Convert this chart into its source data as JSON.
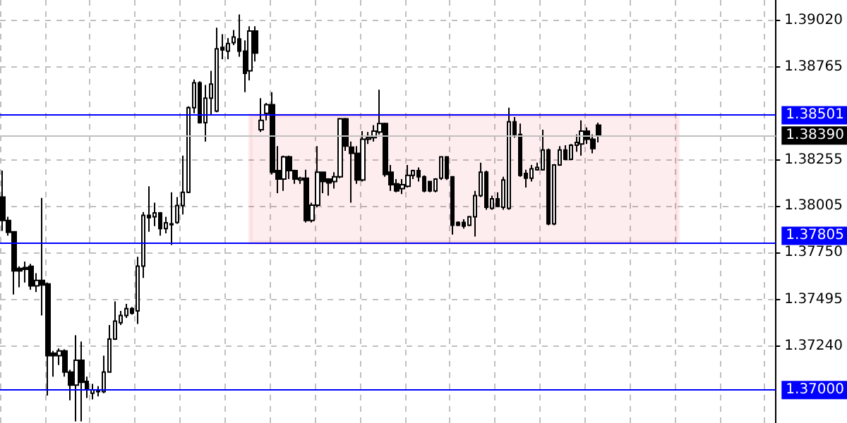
{
  "chart_data": {
    "type": "candlestick",
    "categories": [
      null,
      null,
      null,
      null,
      null,
      null,
      null,
      null,
      null,
      null,
      null,
      null,
      null,
      null,
      null,
      null,
      null,
      null,
      null,
      null,
      null,
      null,
      null,
      null,
      null,
      null,
      null,
      null,
      null,
      null,
      null,
      null,
      null,
      null,
      null,
      null,
      null,
      null,
      null,
      null,
      null,
      null,
      null,
      null,
      null,
      null,
      null,
      null,
      null,
      null,
      null,
      null,
      null,
      null,
      null,
      null,
      null,
      null,
      null,
      null,
      null,
      null,
      null,
      null,
      null,
      null,
      null,
      null,
      null,
      null,
      null,
      null,
      null,
      null,
      null,
      null,
      null,
      null,
      null,
      null,
      null,
      null,
      null,
      null,
      null,
      null,
      null,
      null,
      null,
      null,
      null,
      null,
      null,
      null,
      null,
      null,
      null,
      null,
      null,
      null,
      null,
      null,
      null,
      null,
      null,
      null,
      null,
      null,
      null,
      null,
      null,
      null,
      null,
      null,
      null,
      null,
      null,
      null,
      null,
      null,
      null,
      null,
      null,
      null,
      null,
      null,
      null,
      null,
      null,
      null,
      null,
      null,
      null,
      null,
      null,
      null,
      null,
      null
    ],
    "ohlc": [
      [
        1.38054,
        1.38198,
        1.37869,
        1.37926
      ],
      [
        1.37926,
        1.37946,
        1.37843,
        1.37861
      ],
      [
        1.37864,
        1.37866,
        1.37522,
        1.37651
      ],
      [
        1.37664,
        1.37676,
        1.37561,
        1.37651
      ],
      [
        1.37669,
        1.37702,
        1.37587,
        1.37659
      ],
      [
        1.37676,
        1.37689,
        1.37548,
        1.37569
      ],
      [
        1.37569,
        1.37638,
        1.37535,
        1.37599
      ],
      [
        1.37599,
        1.38049,
        1.37407,
        1.37574
      ],
      [
        1.37579,
        1.37587,
        1.3697,
        1.37188
      ],
      [
        1.37201,
        1.37214,
        1.37073,
        1.37188
      ],
      [
        1.37188,
        1.37227,
        1.37137,
        1.37214
      ],
      [
        1.37214,
        1.37222,
        1.37073,
        1.37098
      ],
      [
        1.37098,
        1.37111,
        1.36944,
        1.37027
      ],
      [
        1.37027,
        1.37299,
        1.36829,
        1.37163
      ],
      [
        1.37163,
        1.37265,
        1.36829,
        1.37042
      ],
      [
        1.37047,
        1.37073,
        1.36957,
        1.37009
      ],
      [
        1.36983,
        1.37034,
        1.36949,
        1.37001
      ],
      [
        1.37001,
        1.37021,
        1.36965,
        1.36991
      ],
      [
        1.36991,
        1.37188,
        1.36983,
        1.37098
      ],
      [
        1.37098,
        1.37355,
        1.37095,
        1.37278
      ],
      [
        1.37278,
        1.37484,
        1.37273,
        1.37376
      ],
      [
        1.37368,
        1.37432,
        1.37355,
        1.37407
      ],
      [
        1.37407,
        1.37471,
        1.37394,
        1.37445
      ],
      [
        1.37445,
        1.37453,
        1.37412,
        1.3742
      ],
      [
        1.37432,
        1.37728,
        1.37361,
        1.37677
      ],
      [
        1.37677,
        1.37972,
        1.37612,
        1.37954
      ],
      [
        1.37954,
        1.38113,
        1.37864,
        1.37941
      ],
      [
        1.37946,
        1.38023,
        1.37895,
        1.37967
      ],
      [
        1.37967,
        1.37972,
        1.37843,
        1.37882
      ],
      [
        1.37882,
        1.37946,
        1.37856,
        1.37913
      ],
      [
        1.37903,
        1.3808,
        1.37792,
        1.37908
      ],
      [
        1.37915,
        1.38054,
        1.37908,
        1.38008
      ],
      [
        1.38008,
        1.3828,
        1.37959,
        1.3808
      ],
      [
        1.3808,
        1.3855,
        1.38075,
        1.38542
      ],
      [
        1.38542,
        1.38696,
        1.38511,
        1.38678
      ],
      [
        1.38678,
        1.38686,
        1.38455,
        1.3846
      ],
      [
        1.3846,
        1.38666,
        1.38357,
        1.38594
      ],
      [
        1.38594,
        1.38743,
        1.38499,
        1.38671
      ],
      [
        1.38524,
        1.38979,
        1.38517,
        1.38863
      ],
      [
        1.38871,
        1.38943,
        1.38807,
        1.38858
      ],
      [
        1.38851,
        1.38922,
        1.38807,
        1.38892
      ],
      [
        1.38897,
        1.38966,
        1.38884,
        1.38928
      ],
      [
        1.38917,
        1.39051,
        1.3882,
        1.38851
      ],
      [
        1.38851,
        1.3891,
        1.38627,
        1.3873
      ],
      [
        1.38743,
        1.38987,
        1.38691,
        1.38961
      ],
      [
        1.38961,
        1.38987,
        1.38794,
        1.3884
      ],
      [
        1.38422,
        1.38594,
        1.38409,
        1.38473
      ],
      [
        1.38511,
        1.38568,
        1.38473,
        1.38558
      ],
      [
        1.38558,
        1.38627,
        1.38177,
        1.3819
      ],
      [
        1.38198,
        1.38332,
        1.38075,
        1.38152
      ],
      [
        1.38152,
        1.3828,
        1.38088,
        1.38273
      ],
      [
        1.38273,
        1.3828,
        1.38152,
        1.38198
      ],
      [
        1.38198,
        1.38203,
        1.38126,
        1.38152
      ],
      [
        1.38147,
        1.38165,
        1.38126,
        1.38157
      ],
      [
        1.38157,
        1.38203,
        1.37915,
        1.37926
      ],
      [
        1.37926,
        1.38023,
        1.37915,
        1.3801
      ],
      [
        1.3801,
        1.38332,
        1.37998,
        1.3819
      ],
      [
        1.3819,
        1.3819,
        1.38075,
        1.38139
      ],
      [
        1.38152,
        1.38157,
        1.38062,
        1.38131
      ],
      [
        1.38139,
        1.3819,
        1.381,
        1.38165
      ],
      [
        1.38165,
        1.38486,
        1.38157,
        1.38481
      ],
      [
        1.38481,
        1.38486,
        1.38306,
        1.38332
      ],
      [
        1.38326,
        1.38357,
        1.38023,
        1.38293
      ],
      [
        1.38293,
        1.38332,
        1.38126,
        1.38147
      ],
      [
        1.38147,
        1.38414,
        1.38139,
        1.3837
      ],
      [
        1.3837,
        1.38409,
        1.38344,
        1.38378
      ],
      [
        1.38378,
        1.38447,
        1.38357,
        1.38414
      ],
      [
        1.38409,
        1.3864,
        1.38396,
        1.38455
      ],
      [
        1.38455,
        1.3846,
        1.38165,
        1.38177
      ],
      [
        1.3819,
        1.38229,
        1.38088,
        1.38121
      ],
      [
        1.38126,
        1.38152,
        1.3808,
        1.38088
      ],
      [
        1.381,
        1.38152,
        1.3807,
        1.38121
      ],
      [
        1.38113,
        1.38229,
        1.38106,
        1.38172
      ],
      [
        1.38172,
        1.38203,
        1.38152,
        1.38198
      ],
      [
        1.38198,
        1.38216,
        1.38139,
        1.38165
      ],
      [
        1.38165,
        1.38172,
        1.3808,
        1.38088
      ],
      [
        1.38139,
        1.38139,
        1.3808,
        1.38088
      ],
      [
        1.38088,
        1.38157,
        1.3808,
        1.38152
      ],
      [
        1.38157,
        1.38275,
        1.38147,
        1.38273
      ],
      [
        1.38273,
        1.38275,
        1.38147,
        1.38157
      ],
      [
        1.38165,
        1.38165,
        1.37849,
        1.379
      ],
      [
        1.37915,
        1.37921,
        1.37895,
        1.379
      ],
      [
        1.37915,
        1.37933,
        1.37882,
        1.37895
      ],
      [
        1.379,
        1.37951,
        1.37895,
        1.37946
      ],
      [
        1.37946,
        1.38088,
        1.37838,
        1.38062
      ],
      [
        1.38062,
        1.38242,
        1.38054,
        1.3819
      ],
      [
        1.3819,
        1.38198,
        1.37985,
        1.37998
      ],
      [
        1.37992,
        1.38062,
        1.37985,
        1.38044
      ],
      [
        1.38044,
        1.3808,
        1.37998,
        1.38003
      ],
      [
        1.37998,
        1.38165,
        1.37985,
        1.38147
      ],
      [
        1.37992,
        1.38542,
        1.37985,
        1.38465
      ],
      [
        1.38465,
        1.38491,
        1.38378,
        1.38396
      ],
      [
        1.38396,
        1.38455,
        1.38165,
        1.38172
      ],
      [
        1.38183,
        1.38203,
        1.38106,
        1.38157
      ],
      [
        1.38157,
        1.38229,
        1.38139,
        1.38208
      ],
      [
        1.38203,
        1.38242,
        1.38198,
        1.38216
      ],
      [
        1.38203,
        1.38422,
        1.38198,
        1.38311
      ],
      [
        1.38311,
        1.38319,
        1.379,
        1.37908
      ],
      [
        1.37908,
        1.38234,
        1.379,
        1.38229
      ],
      [
        1.38229,
        1.38332,
        1.38224,
        1.38311
      ],
      [
        1.38311,
        1.38337,
        1.38255,
        1.3826
      ],
      [
        1.3826,
        1.38344,
        1.38255,
        1.38337
      ],
      [
        1.38337,
        1.38396,
        1.38301,
        1.38352
      ],
      [
        1.38344,
        1.38473,
        1.3828,
        1.38414
      ],
      [
        1.38414,
        1.38434,
        1.38344,
        1.3837
      ],
      [
        1.3837,
        1.38396,
        1.38293,
        1.38319
      ],
      [
        1.38447,
        1.3846,
        1.38352,
        1.3839
      ],
      null,
      null,
      null,
      null,
      null,
      null,
      null,
      null,
      null,
      null,
      null,
      null,
      null,
      null,
      null,
      null,
      null,
      null,
      null,
      null,
      null,
      null,
      null,
      null,
      null,
      null,
      null,
      null,
      null,
      null,
      null
    ],
    "ylim": [
      1.3682,
      1.3913
    ],
    "yticks": [
      {
        "value": 1.3902,
        "label": "1.39020"
      },
      {
        "value": 1.38765,
        "label": "1.38765"
      },
      {
        "value": 1.38255,
        "label": "1.38255"
      },
      {
        "value": 1.38005,
        "label": "1.38005"
      },
      {
        "value": 1.3775,
        "label": "1.37750"
      },
      {
        "value": 1.37495,
        "label": "1.37495"
      },
      {
        "value": 1.3724,
        "label": "1.37240"
      }
    ],
    "ref_lines": [
      {
        "axis": "y",
        "value": 1.38501,
        "label": "1.38501",
        "color": "#0000ff"
      },
      {
        "axis": "y",
        "value": 1.37805,
        "label": "1.37805",
        "color": "#0000ff"
      },
      {
        "axis": "y",
        "value": 1.37,
        "label": "1.37000",
        "color": "#0000ff"
      },
      {
        "axis": "y",
        "value": 1.3839,
        "label": "1.38390",
        "color": "#c0c0c0"
      }
    ],
    "bands": [
      {
        "axis": "y",
        "from": 1.37805,
        "to": 1.38501,
        "color": "#ee1c25"
      }
    ],
    "grid": true,
    "tick_labels": "y"
  }
}
